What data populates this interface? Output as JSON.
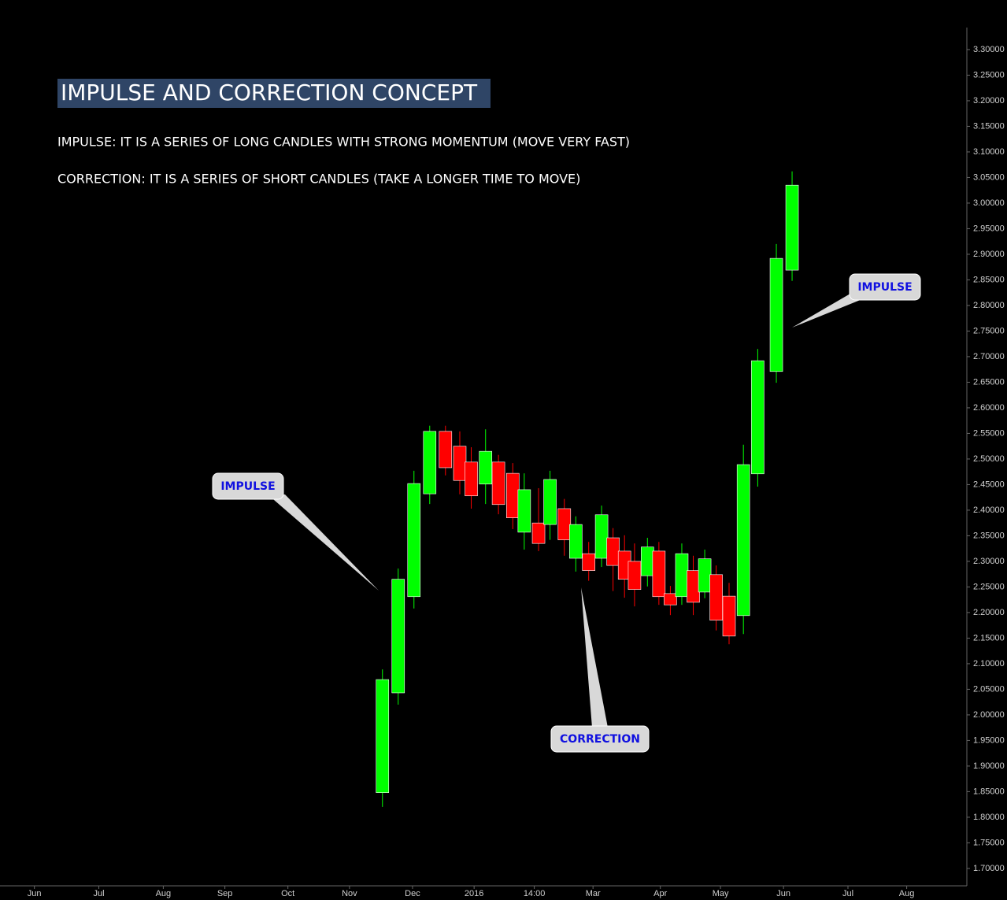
{
  "chart_data": {
    "type": "candlestick",
    "title": "IMPULSE AND CORRECTION CONCEPT",
    "subtitles": [
      "IMPULSE: IT IS A SERIES OF LONG CANDLES WITH STRONG MOMENTUM (MOVE VERY FAST)",
      "CORRECTION: IT IS A SERIES OF SHORT CANDLES (TAKE A LONGER TIME TO MOVE)"
    ],
    "annotations": [
      "IMPULSE",
      "CORRECTION",
      "IMPULSE"
    ],
    "up_color": "#00ff00",
    "down_color": "#ff0000",
    "x": [
      24.3,
      25.4,
      26.5,
      27.6,
      28.7,
      29.7,
      30.5,
      31.5,
      32.4,
      33.4,
      34.2,
      35.2,
      36.0,
      37.0,
      37.8,
      38.7,
      39.6,
      40.4,
      41.2,
      41.9,
      42.8,
      43.6,
      44.4,
      45.2,
      46.0,
      46.8,
      47.6,
      48.5,
      49.5,
      50.5,
      51.8,
      52.9
    ],
    "open": [
      1.848,
      2.043,
      2.231,
      2.432,
      2.554,
      2.525,
      2.494,
      2.451,
      2.494,
      2.472,
      2.357,
      2.375,
      2.372,
      2.403,
      2.306,
      2.315,
      2.306,
      2.346,
      2.32,
      2.3,
      2.272,
      2.32,
      2.237,
      2.231,
      2.282,
      2.24,
      2.274,
      2.232,
      2.194,
      2.471,
      2.671,
      2.869
    ],
    "high": [
      2.089,
      2.286,
      2.477,
      2.565,
      2.565,
      2.554,
      2.523,
      2.558,
      2.508,
      2.492,
      2.472,
      2.443,
      2.477,
      2.422,
      2.388,
      2.338,
      2.409,
      2.365,
      2.351,
      2.335,
      2.346,
      2.338,
      2.252,
      2.335,
      2.311,
      2.323,
      2.292,
      2.258,
      2.528,
      2.715,
      2.92,
      3.062
    ],
    "low": [
      1.82,
      2.02,
      2.208,
      2.412,
      2.468,
      2.431,
      2.403,
      2.412,
      2.392,
      2.363,
      2.323,
      2.32,
      2.342,
      2.311,
      2.28,
      2.262,
      2.289,
      2.242,
      2.229,
      2.212,
      2.251,
      2.215,
      2.195,
      2.215,
      2.195,
      2.228,
      2.165,
      2.138,
      2.158,
      2.446,
      2.649,
      2.848
    ],
    "close": [
      2.069,
      2.265,
      2.452,
      2.554,
      2.483,
      2.458,
      2.428,
      2.515,
      2.411,
      2.385,
      2.44,
      2.335,
      2.46,
      2.342,
      2.372,
      2.282,
      2.391,
      2.292,
      2.265,
      2.245,
      2.328,
      2.231,
      2.215,
      2.315,
      2.22,
      2.305,
      2.185,
      2.154,
      2.489,
      2.692,
      2.892,
      3.035
    ],
    "xlim": [
      -2.4,
      65.1
    ],
    "xticks": [
      {
        "value": 0,
        "label": "Jun"
      },
      {
        "value": 4.5,
        "label": "Jul"
      },
      {
        "value": 9.0,
        "label": "Aug"
      },
      {
        "value": 13.3,
        "label": "Sep"
      },
      {
        "value": 17.7,
        "label": "Oct"
      },
      {
        "value": 22.0,
        "label": "Nov"
      },
      {
        "value": 26.4,
        "label": "Dec"
      },
      {
        "value": 30.7,
        "label": "2016"
      },
      {
        "value": 34.9,
        "label": "14:00"
      },
      {
        "value": 39.0,
        "label": "Mar"
      },
      {
        "value": 43.7,
        "label": "Apr"
      },
      {
        "value": 47.9,
        "label": "May"
      },
      {
        "value": 52.3,
        "label": "Jun"
      },
      {
        "value": 56.8,
        "label": "Jul"
      },
      {
        "value": 60.9,
        "label": "Aug"
      }
    ],
    "ylim": [
      1.666,
      3.343
    ],
    "yticks": [
      {
        "value": 1.7,
        "label": "1.70000"
      },
      {
        "value": 1.75,
        "label": "1.75000"
      },
      {
        "value": 1.8,
        "label": "1.80000"
      },
      {
        "value": 1.85,
        "label": "1.85000"
      },
      {
        "value": 1.9,
        "label": "1.90000"
      },
      {
        "value": 1.95,
        "label": "1.95000"
      },
      {
        "value": 2.0,
        "label": "2.00000"
      },
      {
        "value": 2.05,
        "label": "2.05000"
      },
      {
        "value": 2.1,
        "label": "2.10000"
      },
      {
        "value": 2.15,
        "label": "2.15000"
      },
      {
        "value": 2.2,
        "label": "2.20000"
      },
      {
        "value": 2.25,
        "label": "2.25000"
      },
      {
        "value": 2.3,
        "label": "2.30000"
      },
      {
        "value": 2.35,
        "label": "2.35000"
      },
      {
        "value": 2.4,
        "label": "2.40000"
      },
      {
        "value": 2.45,
        "label": "2.45000"
      },
      {
        "value": 2.5,
        "label": "2.50000"
      },
      {
        "value": 2.55,
        "label": "2.55000"
      },
      {
        "value": 2.6,
        "label": "2.60000"
      },
      {
        "value": 2.65,
        "label": "2.65000"
      },
      {
        "value": 2.7,
        "label": "2.70000"
      },
      {
        "value": 2.75,
        "label": "2.75000"
      },
      {
        "value": 2.8,
        "label": "2.80000"
      },
      {
        "value": 2.85,
        "label": "2.85000"
      },
      {
        "value": 2.9,
        "label": "2.90000"
      },
      {
        "value": 2.95,
        "label": "2.95000"
      },
      {
        "value": 3.0,
        "label": "3.00000"
      },
      {
        "value": 3.05,
        "label": "3.05000"
      },
      {
        "value": 3.1,
        "label": "3.10000"
      },
      {
        "value": 3.15,
        "label": "3.15000"
      },
      {
        "value": 3.2,
        "label": "3.20000"
      },
      {
        "value": 3.25,
        "label": "3.25000"
      },
      {
        "value": 3.3,
        "label": "3.30000"
      }
    ]
  }
}
